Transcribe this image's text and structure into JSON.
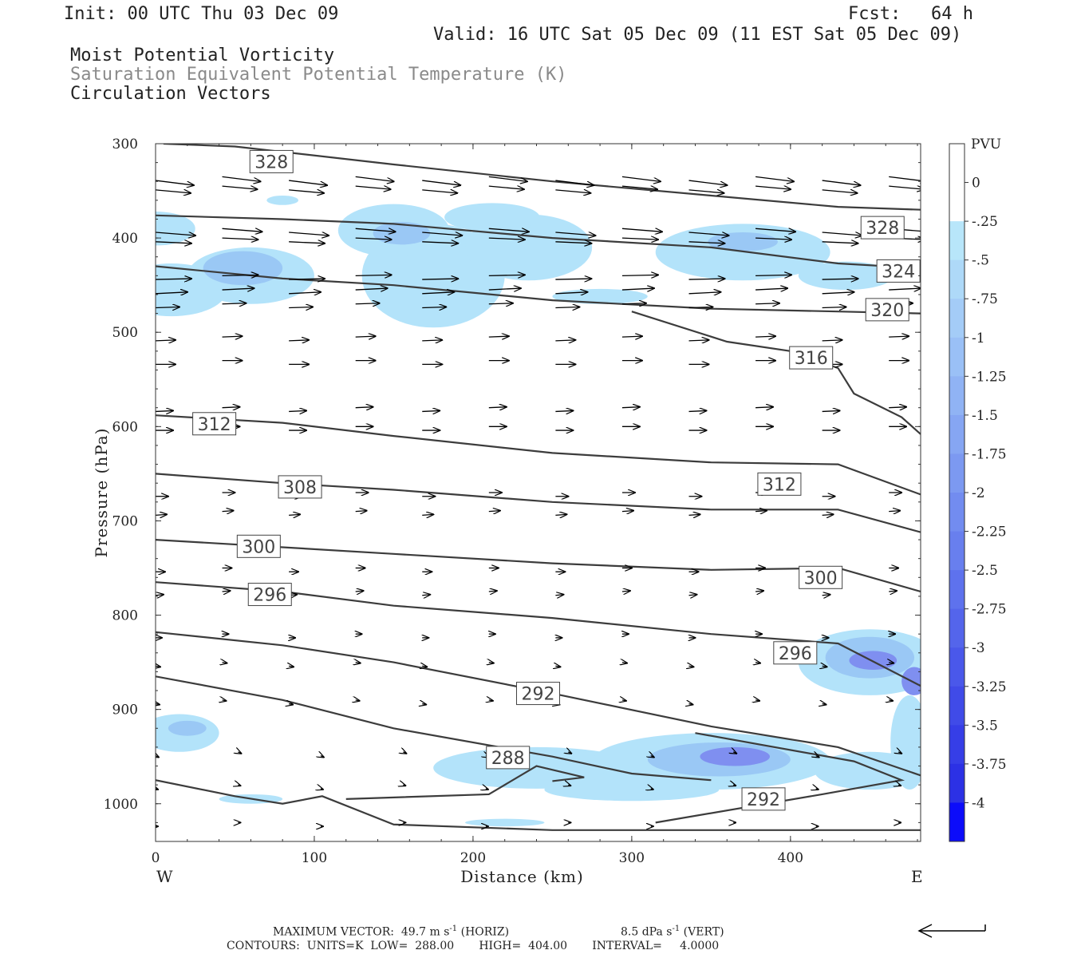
{
  "header": {
    "init": "Init: 00 UTC Thu 03 Dec 09",
    "fcst_label": "Fcst:",
    "fcst_value": "64 h",
    "valid": "Valid: 16 UTC Sat 05 Dec 09 (11 EST Sat 05 Dec 09)",
    "field1": "Moist Potential Vorticity",
    "field2": "Saturation Equivalent Potential Temperature (K)",
    "field3": "Circulation Vectors"
  },
  "chart_data": {
    "type": "cross-section",
    "xlabel": "Distance (km)",
    "ylabel": "Pressure (hPa)",
    "xlim": [
      0,
      482
    ],
    "ylim": [
      1040,
      300
    ],
    "x_ticks": [
      0,
      100,
      200,
      300,
      400
    ],
    "y_ticks": [
      300,
      400,
      500,
      600,
      700,
      800,
      900,
      1000
    ],
    "x_endpoints": {
      "left": "W",
      "right": "E"
    },
    "grid": false,
    "colors": {
      "shade_light": "#b3e3fa",
      "shade_mid": "#9ac8f5",
      "shade_dark": "#7f8ff0",
      "contour": "#3c3c3c",
      "vector": "#000000"
    },
    "colorbar": {
      "title": "PVU",
      "labels": [
        "0",
        "-.25",
        "-.5",
        "-.75",
        "-1",
        "-1.25",
        "-1.5",
        "-1.75",
        "-2",
        "-2.25",
        "-2.5",
        "-2.75",
        "-3",
        "-3.25",
        "-3.5",
        "-3.75",
        "-4"
      ],
      "colors": [
        "#ffffff",
        "#ffffff",
        "#b8e6fa",
        "#aed9f8",
        "#a4ccf7",
        "#9ac0f6",
        "#90b3f4",
        "#86a6f3",
        "#7c99f1",
        "#728cf0",
        "#687fee",
        "#5e72ed",
        "#5465eb",
        "#4a58ea",
        "#404be8",
        "#363ee7",
        "#2c31e5",
        "#0c0cfa"
      ]
    },
    "contours": [
      {
        "label": "328",
        "points": [
          [
            5,
            300
          ],
          [
            50,
            303
          ],
          [
            150,
            322
          ],
          [
            250,
            340
          ],
          [
            350,
            355
          ],
          [
            430,
            367
          ],
          [
            482,
            370
          ]
        ],
        "labels_at": [
          [
            73,
            319
          ],
          [
            458,
            389
          ]
        ]
      },
      {
        "label": "324",
        "points": [
          [
            0,
            376
          ],
          [
            80,
            380
          ],
          [
            150,
            385
          ],
          [
            250,
            400
          ],
          [
            350,
            410
          ],
          [
            430,
            427
          ],
          [
            482,
            432
          ]
        ],
        "labels_at": [
          [
            468,
            435
          ]
        ]
      },
      {
        "label": "320",
        "points": [
          [
            0,
            430
          ],
          [
            80,
            443
          ],
          [
            150,
            450
          ],
          [
            250,
            466
          ],
          [
            350,
            475
          ],
          [
            430,
            478
          ],
          [
            482,
            480
          ]
        ],
        "labels_at": [
          [
            461,
            476
          ]
        ]
      },
      {
        "label": "316",
        "points": [
          [
            300,
            478
          ],
          [
            360,
            510
          ],
          [
            400,
            520
          ],
          [
            430,
            538
          ],
          [
            440,
            565
          ],
          [
            470,
            590
          ],
          [
            482,
            608
          ]
        ],
        "labels_at": [
          [
            413,
            527
          ]
        ]
      },
      {
        "label": "312",
        "points": [
          [
            0,
            588
          ],
          [
            80,
            596
          ],
          [
            150,
            610
          ],
          [
            250,
            628
          ],
          [
            350,
            638
          ],
          [
            430,
            640
          ],
          [
            482,
            672
          ]
        ],
        "labels_at": [
          [
            37,
            597
          ],
          [
            393,
            661
          ]
        ]
      },
      {
        "label": "308",
        "points": [
          [
            0,
            650
          ],
          [
            80,
            660
          ],
          [
            150,
            667
          ],
          [
            250,
            680
          ],
          [
            350,
            688
          ],
          [
            430,
            688
          ],
          [
            482,
            712
          ]
        ],
        "labels_at": [
          [
            91,
            664
          ]
        ]
      },
      {
        "label": "300",
        "points": [
          [
            0,
            720
          ],
          [
            80,
            728
          ],
          [
            150,
            735
          ],
          [
            250,
            745
          ],
          [
            350,
            752
          ],
          [
            430,
            750
          ],
          [
            482,
            775
          ]
        ],
        "labels_at": [
          [
            65,
            727
          ],
          [
            419,
            760
          ]
        ]
      },
      {
        "label": "296",
        "points": [
          [
            0,
            765
          ],
          [
            80,
            775
          ],
          [
            150,
            790
          ],
          [
            250,
            803
          ],
          [
            350,
            820
          ],
          [
            430,
            830
          ],
          [
            482,
            875
          ]
        ],
        "labels_at": [
          [
            72,
            778
          ],
          [
            403,
            840
          ]
        ]
      },
      {
        "label": "292",
        "points": [
          [
            0,
            818
          ],
          [
            80,
            832
          ],
          [
            150,
            850
          ],
          [
            250,
            883
          ],
          [
            350,
            918
          ],
          [
            430,
            940
          ],
          [
            482,
            970
          ]
        ],
        "labels_at": [
          [
            241,
            883
          ],
          [
            383,
            995
          ]
        ]
      },
      {
        "label": "288",
        "points": [
          [
            0,
            865
          ],
          [
            80,
            890
          ],
          [
            150,
            920
          ],
          [
            250,
            950
          ],
          [
            300,
            968
          ],
          [
            350,
            975
          ]
        ],
        "labels_at": [
          [
            222,
            951
          ]
        ]
      }
    ],
    "vector_max": {
      "horiz": "49.7",
      "vert": "8.5"
    }
  },
  "footer": {
    "max_vector": "MAXIMUM VECTOR:  49.7 m s",
    "max_vector_unit": "-1",
    "horiz": " (HORIZ)",
    "vert_value": "8.5 dPa s",
    "vert_unit": "-1",
    "vert_label": " (VERT)",
    "contours": "CONTOURS:  UNITS=K  LOW=  288.00       HIGH=  404.00       INTERVAL=     4.0000"
  }
}
